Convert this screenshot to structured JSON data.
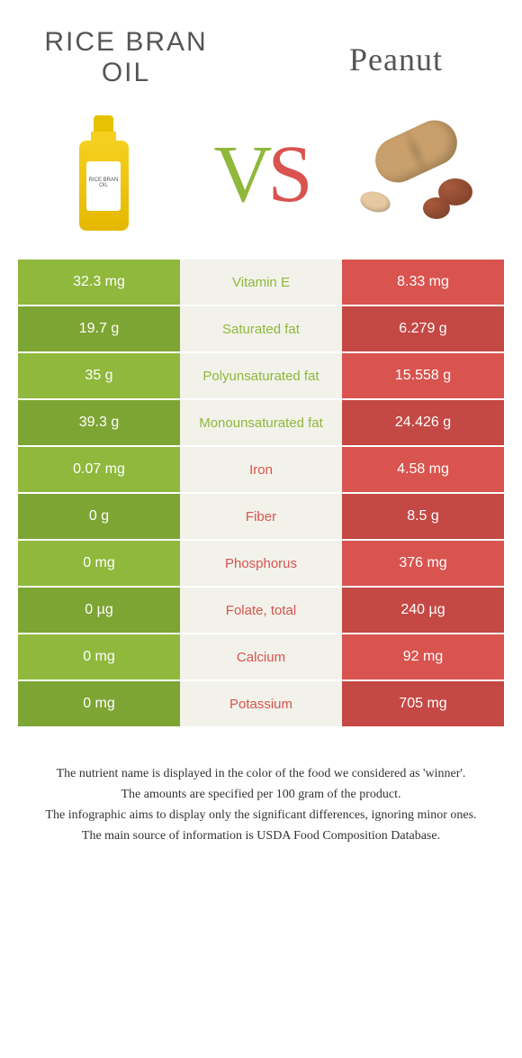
{
  "colors": {
    "green": "#8fb83c",
    "green_dark": "#7da534",
    "red": "#d9534f",
    "red_dark": "#c44844",
    "mid_bg": "#f2f2ea"
  },
  "left": {
    "title": "Rice bran oil"
  },
  "right": {
    "title": "Peanut"
  },
  "vs": {
    "v": "V",
    "s": "S"
  },
  "oil_label": "RICE BRAN OIL",
  "rows": [
    {
      "left": "32.3 mg",
      "mid": "Vitamin E",
      "right": "8.33 mg",
      "winner": "left"
    },
    {
      "left": "19.7 g",
      "mid": "Saturated fat",
      "right": "6.279 g",
      "winner": "left"
    },
    {
      "left": "35 g",
      "mid": "Polyunsaturated fat",
      "right": "15.558 g",
      "winner": "left"
    },
    {
      "left": "39.3 g",
      "mid": "Monounsaturated fat",
      "right": "24.426 g",
      "winner": "left"
    },
    {
      "left": "0.07 mg",
      "mid": "Iron",
      "right": "4.58 mg",
      "winner": "right"
    },
    {
      "left": "0 g",
      "mid": "Fiber",
      "right": "8.5 g",
      "winner": "right"
    },
    {
      "left": "0 mg",
      "mid": "Phosphorus",
      "right": "376 mg",
      "winner": "right"
    },
    {
      "left": "0 µg",
      "mid": "Folate, total",
      "right": "240 µg",
      "winner": "right"
    },
    {
      "left": "0 mg",
      "mid": "Calcium",
      "right": "92 mg",
      "winner": "right"
    },
    {
      "left": "0 mg",
      "mid": "Potassium",
      "right": "705 mg",
      "winner": "right"
    }
  ],
  "footer": [
    "The nutrient name is displayed in the color of the food we considered as 'winner'.",
    "The amounts are specified per 100 gram of the product.",
    "The infographic aims to display only the significant differences, ignoring minor ones.",
    "The main source of information is USDA Food Composition Database."
  ]
}
